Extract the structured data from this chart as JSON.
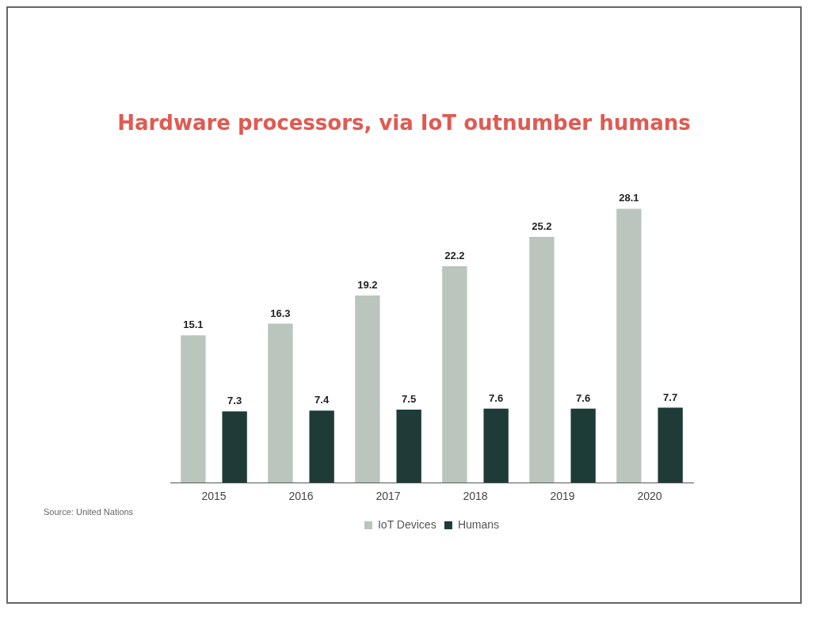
{
  "chart_data": {
    "type": "bar",
    "title": "Hardware processors, via IoT outnumber humans",
    "categories": [
      "2015",
      "2016",
      "2017",
      "2018",
      "2019",
      "2020"
    ],
    "series": [
      {
        "name": "IoT Devices",
        "color": "#b9c5bd",
        "values": [
          15.1,
          16.3,
          19.2,
          22.2,
          25.2,
          28.1
        ]
      },
      {
        "name": "Humans",
        "color": "#1f3b37",
        "values": [
          7.3,
          7.4,
          7.5,
          7.6,
          7.6,
          7.7
        ]
      }
    ],
    "data_labels": true,
    "legend": "bottom",
    "grid": false,
    "annotations": [
      "Source: United Nations"
    ]
  }
}
